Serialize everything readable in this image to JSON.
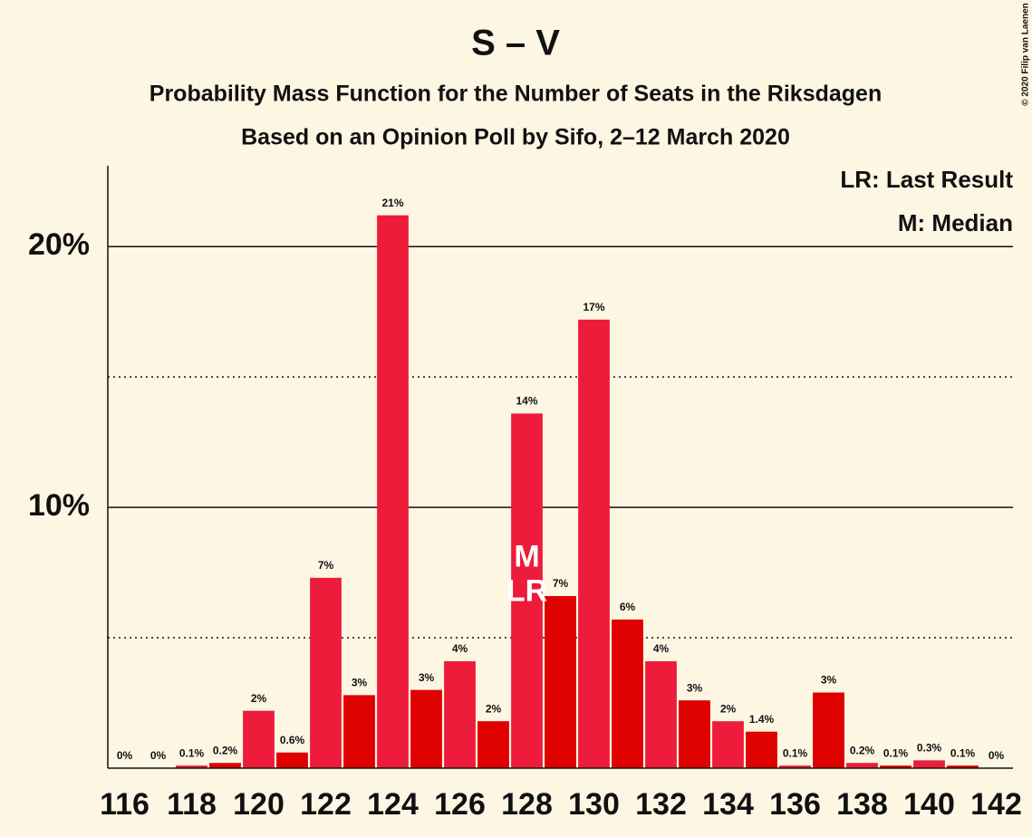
{
  "chart_data": {
    "type": "bar",
    "title": "S – V",
    "subtitle": "Probability Mass Function for the Number of Seats in the Riksdagen",
    "subtitle2": "Based on an Opinion Poll by Sifo, 2–12 March 2020",
    "copyright": "© 2020 Filip van Laenen",
    "legend_notes": [
      "LR: Last Result",
      "M: Median"
    ],
    "x": [
      116,
      117,
      118,
      119,
      120,
      121,
      122,
      123,
      124,
      125,
      126,
      127,
      128,
      129,
      130,
      131,
      132,
      133,
      134,
      135,
      136,
      137,
      138,
      139,
      140,
      141,
      142
    ],
    "values": [
      0,
      0,
      0.1,
      0.2,
      2.2,
      0.6,
      7.3,
      2.8,
      21.2,
      3.0,
      4.1,
      1.8,
      13.6,
      6.6,
      17.2,
      5.7,
      4.1,
      2.6,
      1.8,
      1.4,
      0.1,
      2.9,
      0.2,
      0.1,
      0.3,
      0.1,
      0
    ],
    "value_labels": [
      "0%",
      "0%",
      "0.1%",
      "0.2%",
      "2%",
      "0.6%",
      "7%",
      "3%",
      "21%",
      "3%",
      "4%",
      "2%",
      "14%",
      "7%",
      "17%",
      "6%",
      "4%",
      "3%",
      "2%",
      "1.4%",
      "0.1%",
      "3%",
      "0.2%",
      "0.1%",
      "0.3%",
      "0.1%",
      "0%"
    ],
    "colors": [
      "#ed1c3a",
      "#df0000"
    ],
    "annotations": [
      {
        "text": "M",
        "x": 128
      },
      {
        "text": "LR",
        "x": 128
      }
    ],
    "xlim": [
      115.5,
      142.5
    ],
    "xticks": [
      116,
      118,
      120,
      122,
      124,
      126,
      128,
      130,
      132,
      134,
      136,
      138,
      140,
      142
    ],
    "ylim": [
      0,
      23.1
    ],
    "yticks": [
      {
        "value": 10,
        "label": "10%"
      },
      {
        "value": 20,
        "label": "20%"
      }
    ],
    "minor_yticks": [
      5,
      15
    ],
    "grid": true
  }
}
